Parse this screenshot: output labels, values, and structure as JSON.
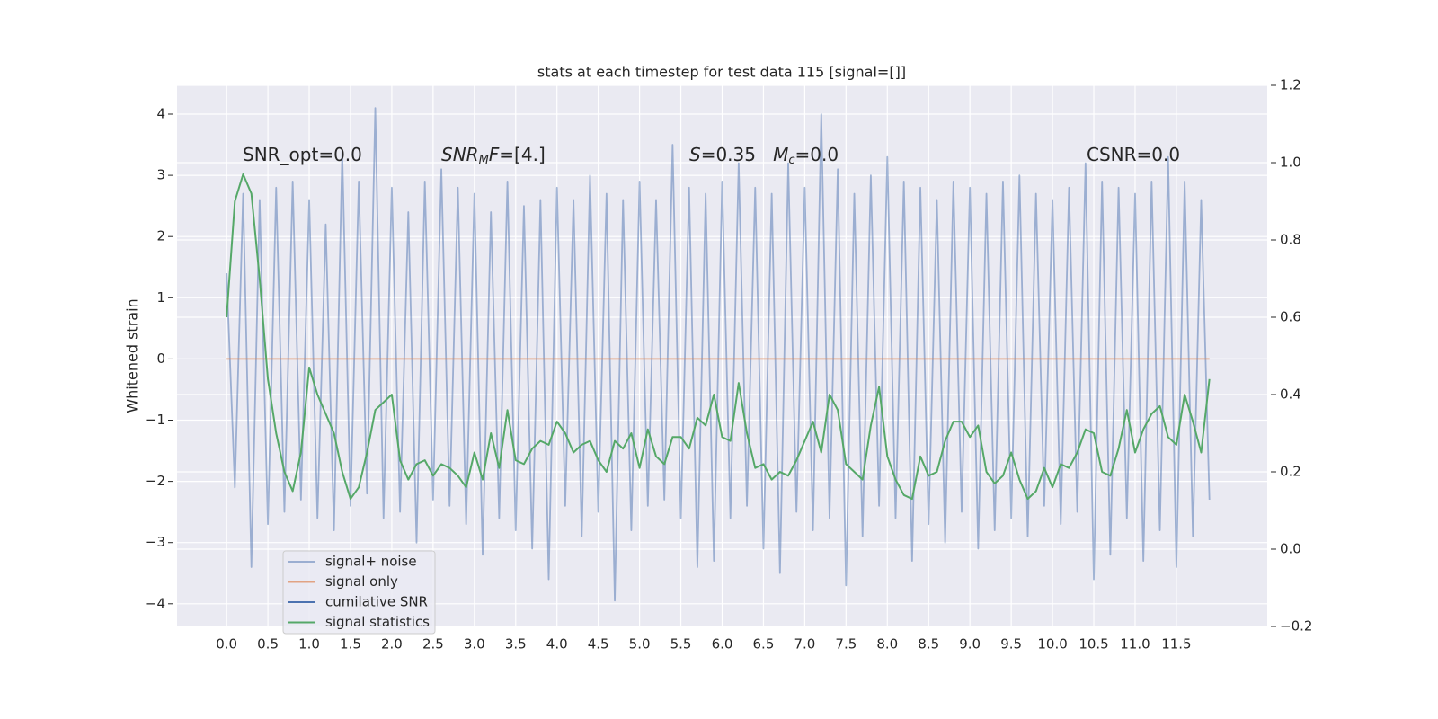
{
  "chart_data": {
    "type": "line",
    "title": "stats at each timestep for test data 115 [signal=[]]",
    "ylabel": "Whitened strain",
    "grid": true,
    "legend": "lower left",
    "xlim": [
      -0.6,
      12.6
    ],
    "ylim": [
      -4.37,
      4.47
    ],
    "y2lim": [
      -0.2,
      1.2
    ],
    "xticks": [
      {
        "value": 0,
        "label": "0.0"
      },
      {
        "value": 0.5,
        "label": "0.5"
      },
      {
        "value": 1,
        "label": "1.0"
      },
      {
        "value": 1.5,
        "label": "1.5"
      },
      {
        "value": 2,
        "label": "2.0"
      },
      {
        "value": 2.5,
        "label": "2.5"
      },
      {
        "value": 3,
        "label": "3.0"
      },
      {
        "value": 3.5,
        "label": "3.5"
      },
      {
        "value": 4,
        "label": "4.0"
      },
      {
        "value": 4.5,
        "label": "4.5"
      },
      {
        "value": 5,
        "label": "5.0"
      },
      {
        "value": 5.5,
        "label": "5.5"
      },
      {
        "value": 6,
        "label": "6.0"
      },
      {
        "value": 6.5,
        "label": "6.5"
      },
      {
        "value": 7,
        "label": "7.0"
      },
      {
        "value": 7.5,
        "label": "7.5"
      },
      {
        "value": 8,
        "label": "8.0"
      },
      {
        "value": 8.5,
        "label": "8.5"
      },
      {
        "value": 9,
        "label": "9.0"
      },
      {
        "value": 9.5,
        "label": "9.5"
      },
      {
        "value": 10,
        "label": "10.0"
      },
      {
        "value": 10.5,
        "label": "10.5"
      },
      {
        "value": 11,
        "label": "11.0"
      },
      {
        "value": 11.5,
        "label": "11.5"
      }
    ],
    "yticks": [
      {
        "value": -4,
        "label": "−4"
      },
      {
        "value": -3,
        "label": "−3"
      },
      {
        "value": -2,
        "label": "−2"
      },
      {
        "value": -1,
        "label": "−1"
      },
      0,
      1,
      2,
      3,
      4
    ],
    "y2ticks": [
      {
        "value": -0.2,
        "label": "−0.2"
      },
      {
        "value": 0,
        "label": "0.0"
      },
      0.2,
      0.4,
      0.6,
      0.8,
      {
        "value": 1,
        "label": "1.0"
      },
      1.2
    ],
    "annotations": [
      [
        {
          "text": "SNR_opt=0.0"
        }
      ],
      [
        {
          "text": "SNR",
          "style": "italic"
        },
        {
          "text": "M",
          "style": "sub"
        },
        {
          "text": "F",
          "style": "italic"
        },
        {
          "text": "=[4.]"
        }
      ],
      [
        {
          "text": "S",
          "style": "italic"
        },
        {
          "text": "=0.35   "
        },
        {
          "text": "M",
          "style": "italic"
        },
        {
          "text": "c",
          "style": "sub"
        },
        {
          "text": "=0.0"
        }
      ],
      [
        {
          "text": "CSNR=0.0"
        }
      ]
    ],
    "x": [
      0,
      0.1,
      0.2,
      0.3,
      0.4,
      0.5,
      0.6,
      0.7,
      0.8,
      0.9,
      1,
      1.1,
      1.2,
      1.3,
      1.4,
      1.5,
      1.6,
      1.7,
      1.8,
      1.9,
      2,
      2.1,
      2.2,
      2.3,
      2.4,
      2.5,
      2.6,
      2.7,
      2.8,
      2.9,
      3,
      3.1,
      3.2,
      3.3,
      3.4,
      3.5,
      3.6,
      3.7,
      3.8,
      3.9,
      4,
      4.1,
      4.2,
      4.3,
      4.4,
      4.5,
      4.6,
      4.7,
      4.8,
      4.9,
      5,
      5.1,
      5.2,
      5.3,
      5.4,
      5.5,
      5.6,
      5.7,
      5.8,
      5.9,
      6,
      6.1,
      6.2,
      6.3,
      6.4,
      6.5,
      6.6,
      6.7,
      6.8,
      6.9,
      7,
      7.1,
      7.2,
      7.3,
      7.4,
      7.5,
      7.6,
      7.7,
      7.8,
      7.9,
      8,
      8.1,
      8.2,
      8.3,
      8.4,
      8.5,
      8.6,
      8.7,
      8.8,
      8.9,
      9,
      9.1,
      9.2,
      9.3,
      9.4,
      9.5,
      9.6,
      9.7,
      9.8,
      9.9,
      10,
      10.1,
      10.2,
      10.3,
      10.4,
      10.5,
      10.6,
      10.7,
      10.8,
      10.9,
      11,
      11.1,
      11.2,
      11.3,
      11.4,
      11.5,
      11.6,
      11.7,
      11.8,
      11.9
    ],
    "series": [
      {
        "name": "signal+ noise",
        "color": "#4c72b0",
        "opacity": 0.5,
        "values": [
          1.4,
          -2.1,
          2.7,
          -3.4,
          2.6,
          -2.7,
          2.8,
          -2.5,
          2.9,
          -2.3,
          2.6,
          -2.6,
          2.2,
          -2.8,
          3.4,
          -2.4,
          2.9,
          -2.2,
          4.1,
          -2.6,
          2.8,
          -2.5,
          2.4,
          -3.0,
          2.9,
          -2.3,
          3.1,
          -2.4,
          2.8,
          -2.7,
          2.7,
          -3.2,
          2.4,
          -2.6,
          2.9,
          -2.8,
          2.5,
          -3.1,
          2.6,
          -3.6,
          2.8,
          -2.4,
          2.6,
          -2.9,
          3.0,
          -2.5,
          2.7,
          -3.95,
          2.6,
          -2.8,
          2.9,
          -2.4,
          2.6,
          -2.3,
          3.5,
          -2.6,
          2.8,
          -3.4,
          2.7,
          -3.3,
          2.9,
          -2.6,
          3.2,
          -2.4,
          2.8,
          -3.1,
          2.7,
          -3.5,
          3.2,
          -2.5,
          2.8,
          -2.8,
          4.0,
          -2.6,
          3.1,
          -3.7,
          2.7,
          -2.9,
          3.0,
          -2.4,
          3.3,
          -2.6,
          2.9,
          -3.3,
          2.8,
          -2.7,
          2.6,
          -3.0,
          2.9,
          -2.5,
          2.8,
          -3.1,
          2.7,
          -2.8,
          2.9,
          -2.6,
          3.0,
          -2.9,
          2.7,
          -2.4,
          2.6,
          -2.7,
          2.8,
          -2.5,
          3.2,
          -3.6,
          2.9,
          -3.2,
          2.8,
          -2.6,
          2.7,
          -3.3,
          2.9,
          -2.8,
          3.3,
          -3.4,
          2.9,
          -2.9,
          2.6,
          -2.3
        ]
      },
      {
        "name": "signal only",
        "color": "#dd8452",
        "opacity": 0.7,
        "values": [
          0,
          0,
          0,
          0,
          0,
          0,
          0,
          0,
          0,
          0,
          0,
          0,
          0,
          0,
          0,
          0,
          0,
          0,
          0,
          0,
          0,
          0,
          0,
          0,
          0,
          0,
          0,
          0,
          0,
          0,
          0,
          0,
          0,
          0,
          0,
          0,
          0,
          0,
          0,
          0,
          0,
          0,
          0,
          0,
          0,
          0,
          0,
          0,
          0,
          0,
          0,
          0,
          0,
          0,
          0,
          0,
          0,
          0,
          0,
          0,
          0,
          0,
          0,
          0,
          0,
          0,
          0,
          0,
          0,
          0,
          0,
          0,
          0,
          0,
          0,
          0,
          0,
          0,
          0,
          0,
          0,
          0,
          0,
          0,
          0,
          0,
          0,
          0,
          0,
          0,
          0,
          0,
          0,
          0,
          0,
          0,
          0,
          0,
          0,
          0,
          0,
          0,
          0,
          0,
          0,
          0,
          0,
          0,
          0,
          0,
          0,
          0,
          0,
          0,
          0,
          0,
          0,
          0,
          0,
          0
        ]
      },
      {
        "name": "cumilative SNR",
        "color": "#4c72b0",
        "opacity": 1,
        "axis": "y2",
        "values": [
          null,
          null,
          null,
          null,
          null,
          null,
          null,
          null,
          null,
          null,
          null,
          null,
          null,
          null,
          null,
          null,
          null,
          null,
          null,
          null,
          null,
          null,
          null,
          null,
          null,
          null,
          null,
          null,
          null,
          null,
          null,
          null,
          null,
          null,
          null,
          null,
          null,
          null,
          null,
          null,
          null,
          null,
          null,
          null,
          null,
          null,
          null,
          null,
          null,
          null,
          null,
          null,
          null,
          null,
          null,
          null,
          null,
          null,
          null,
          null,
          null,
          null,
          null,
          null,
          null,
          null,
          null,
          null,
          null,
          null,
          null,
          null,
          null,
          null,
          null,
          null,
          null,
          null,
          null,
          null,
          null,
          null,
          null,
          null,
          null,
          null,
          null,
          null,
          null,
          null,
          null,
          null,
          null,
          null,
          null,
          null,
          null,
          null,
          null,
          null,
          null,
          null,
          null,
          null,
          null,
          null,
          null,
          null,
          null,
          null,
          null,
          null,
          null,
          null,
          null,
          null,
          null,
          null,
          null,
          null
        ]
      },
      {
        "name": "signal statistics",
        "color": "#55a868",
        "opacity": 1,
        "axis": "y2",
        "values": [
          0.6,
          0.9,
          0.97,
          0.92,
          0.7,
          0.44,
          0.3,
          0.2,
          0.15,
          0.25,
          0.47,
          0.4,
          0.35,
          0.3,
          0.2,
          0.13,
          0.16,
          0.25,
          0.36,
          0.38,
          0.4,
          0.23,
          0.18,
          0.22,
          0.23,
          0.19,
          0.22,
          0.21,
          0.19,
          0.16,
          0.25,
          0.18,
          0.3,
          0.21,
          0.36,
          0.23,
          0.22,
          0.26,
          0.28,
          0.27,
          0.33,
          0.3,
          0.25,
          0.27,
          0.28,
          0.23,
          0.2,
          0.28,
          0.26,
          0.3,
          0.21,
          0.31,
          0.24,
          0.22,
          0.29,
          0.29,
          0.26,
          0.34,
          0.32,
          0.4,
          0.29,
          0.28,
          0.43,
          0.3,
          0.21,
          0.22,
          0.18,
          0.2,
          0.19,
          0.23,
          0.28,
          0.33,
          0.25,
          0.4,
          0.36,
          0.22,
          0.2,
          0.18,
          0.32,
          0.42,
          0.24,
          0.18,
          0.14,
          0.13,
          0.24,
          0.19,
          0.2,
          0.28,
          0.33,
          0.33,
          0.29,
          0.32,
          0.2,
          0.17,
          0.19,
          0.25,
          0.18,
          0.13,
          0.15,
          0.21,
          0.16,
          0.22,
          0.21,
          0.25,
          0.31,
          0.3,
          0.2,
          0.19,
          0.26,
          0.36,
          0.25,
          0.31,
          0.35,
          0.37,
          0.29,
          0.27,
          0.4,
          0.33,
          0.25,
          0.44
        ]
      }
    ]
  }
}
